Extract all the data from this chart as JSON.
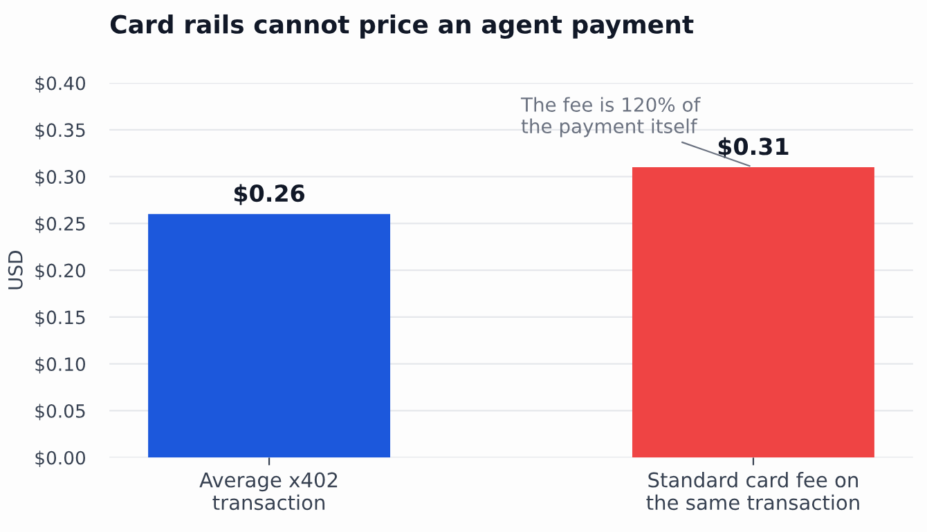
{
  "chart_data": {
    "type": "bar",
    "title": "Card rails cannot price an agent payment",
    "ylabel": "USD",
    "categories": [
      "Average x402\ntransaction",
      "Standard card fee on\nthe same transaction"
    ],
    "values": [
      0.26,
      0.31
    ],
    "colors": [
      "#1c58dc",
      "#ef4444"
    ],
    "value_labels": [
      "$0.26",
      "$0.31"
    ],
    "ylim": [
      0,
      0.4
    ],
    "yticks": [
      {
        "value": 0,
        "label": "$0.00"
      },
      {
        "value": 0.05,
        "label": "$0.05"
      },
      {
        "value": 0.1,
        "label": "$0.10"
      },
      {
        "value": 0.15,
        "label": "$0.15"
      },
      {
        "value": 0.2,
        "label": "$0.20"
      },
      {
        "value": 0.25,
        "label": "$0.25"
      },
      {
        "value": 0.3,
        "label": "$0.30"
      },
      {
        "value": 0.35,
        "label": "$0.35"
      },
      {
        "value": 0.4,
        "label": "$0.40"
      }
    ],
    "grid": "y",
    "legend": false,
    "annotations": [
      {
        "text": "The fee is 120% of\nthe payment itself",
        "x": "Standard card fee on\nthe same transaction",
        "y": 0.31
      }
    ]
  }
}
